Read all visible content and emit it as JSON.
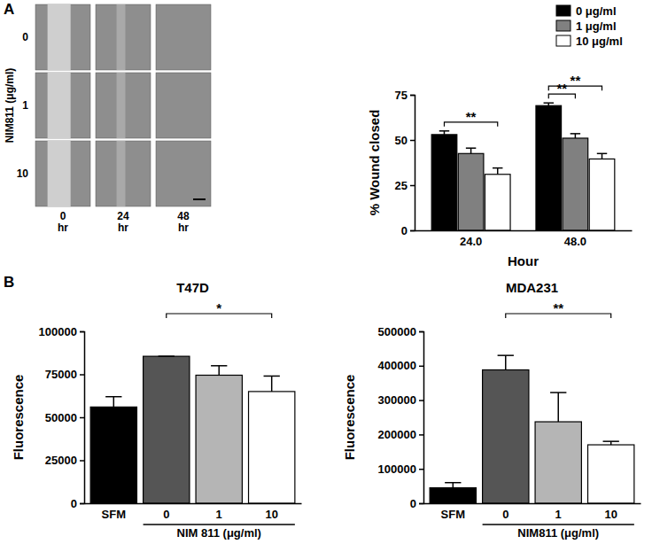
{
  "chart_data": [
    {
      "type": "image_grid",
      "annotations": [
        "A"
      ],
      "row_title": "NIM811 (μg/ml)",
      "rows": [
        "0",
        "1",
        "10"
      ],
      "columns": [
        [
          "0",
          "hr"
        ],
        [
          "24",
          "hr"
        ],
        [
          "48",
          "hr"
        ]
      ]
    },
    {
      "type": "bar",
      "xlabel": "Hour",
      "ylabel": "% Wound closed",
      "categories": [
        "24.0",
        "48.0"
      ],
      "series": [
        {
          "name": "0 μg/ml",
          "color": "#000000",
          "values": [
            53,
            69
          ],
          "errors": [
            2,
            1.5
          ]
        },
        {
          "name": "1 μg/ml",
          "color": "#808080",
          "values": [
            42.5,
            51
          ],
          "errors": [
            3,
            2.5
          ]
        },
        {
          "name": "10 μg/ml",
          "color": "#ffffff",
          "values": [
            31,
            39.5
          ],
          "errors": [
            3.5,
            3
          ]
        }
      ],
      "ylim": [
        0,
        75
      ],
      "yticks": [
        0,
        25,
        50,
        75
      ],
      "legend": "top-right",
      "significance": [
        {
          "category": 0,
          "from": 0,
          "to": 2,
          "label": "**"
        },
        {
          "category": 1,
          "from": 0,
          "to": 1,
          "label": "**"
        },
        {
          "category": 1,
          "from": 0,
          "to": 2,
          "label": "**"
        }
      ]
    },
    {
      "type": "bar",
      "annotations": [
        "B"
      ],
      "title": "T47D",
      "ylabel": "Fluorescence",
      "xlabel": "NIM 811 (μg/ml)",
      "xlabel_span": [
        1,
        3
      ],
      "categories": [
        "SFM",
        "0",
        "1",
        "10"
      ],
      "values": [
        56000,
        85500,
        74500,
        65000
      ],
      "errors": [
        6000,
        0,
        5500,
        9000
      ],
      "colors": [
        "#000000",
        "#555555",
        "#b5b5b5",
        "#ffffff"
      ],
      "ylim": [
        0,
        100000
      ],
      "yticks": [
        0,
        25000,
        50000,
        75000,
        100000
      ],
      "significance": [
        {
          "from": 1,
          "to": 3,
          "label": "*"
        }
      ]
    },
    {
      "type": "bar",
      "title": "MDA231",
      "ylabel": "Fluorescence",
      "xlabel": "NIM811 (μg/ml)",
      "xlabel_span": [
        1,
        3
      ],
      "categories": [
        "SFM",
        "0",
        "1",
        "10"
      ],
      "values": [
        45000,
        388000,
        237000,
        170000
      ],
      "errors": [
        15000,
        42000,
        85000,
        10000
      ],
      "colors": [
        "#000000",
        "#555555",
        "#b5b5b5",
        "#ffffff"
      ],
      "ylim": [
        0,
        500000
      ],
      "yticks": [
        0,
        100000,
        200000,
        300000,
        400000,
        500000
      ],
      "significance": [
        {
          "from": 1,
          "to": 3,
          "label": "**"
        }
      ]
    }
  ]
}
